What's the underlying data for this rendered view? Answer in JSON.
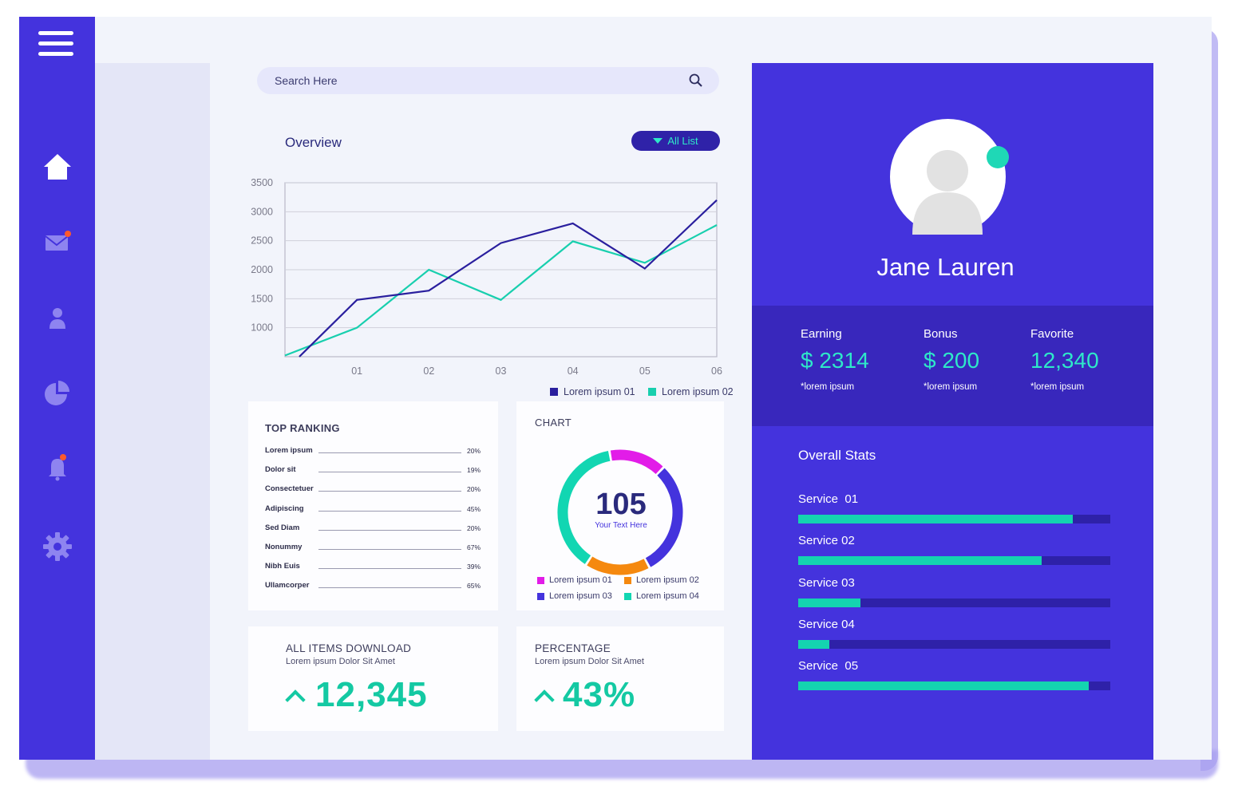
{
  "search": {
    "placeholder": "Search Here"
  },
  "overview": {
    "title": "Overview",
    "filter_label": "All List"
  },
  "chart_data": [
    {
      "type": "line",
      "title": "Overview",
      "x": [
        "01",
        "02",
        "03",
        "04",
        "05",
        "06"
      ],
      "y_ticks": [
        "3500",
        "3000",
        "2500",
        "2000",
        "1500",
        "1000"
      ],
      "ylim": [
        500,
        3500
      ],
      "grid": true,
      "legend_position": "bottom-right",
      "series": [
        {
          "name": "Lorem ipsum 01",
          "color": "#2a1f9e",
          "points": [
            [
              0.2,
              500
            ],
            [
              1,
              1480
            ],
            [
              2,
              1640
            ],
            [
              3,
              2460
            ],
            [
              4,
              2800
            ],
            [
              5,
              2020
            ],
            [
              6,
              3200
            ]
          ]
        },
        {
          "name": "Lorem ipsum 02",
          "color": "#18cfae",
          "points": [
            [
              0,
              520
            ],
            [
              1,
              1000
            ],
            [
              2,
              2000
            ],
            [
              3,
              1480
            ],
            [
              4,
              2490
            ],
            [
              5,
              2120
            ],
            [
              6,
              2770
            ]
          ]
        }
      ]
    },
    {
      "type": "pie",
      "title": "CHART",
      "center_value": "105",
      "center_label": "Your Text Here",
      "series": [
        {
          "name": "Lorem ipsum 01",
          "value": 15,
          "color": "#e21ce8"
        },
        {
          "name": "Lorem ipsum 03",
          "value": 30,
          "color": "#4433dd"
        },
        {
          "name": "Lorem ipsum 02",
          "value": 17,
          "color": "#f5890f"
        },
        {
          "name": "Lorem ipsum 04",
          "value": 38,
          "color": "#12d6b2"
        }
      ]
    }
  ],
  "ranking": {
    "title": "TOP RANKING",
    "rows": [
      {
        "label": "Lorem ipsum",
        "value": "20%"
      },
      {
        "label": "Dolor sit",
        "value": "19%"
      },
      {
        "label": "Consectetuer",
        "value": "20%"
      },
      {
        "label": "Adipiscing",
        "value": "45%"
      },
      {
        "label": "Sed Diam",
        "value": "20%"
      },
      {
        "label": "Nonummy",
        "value": "67%"
      },
      {
        "label": "Nibh Euis",
        "value": "39%"
      },
      {
        "label": "Ullamcorper",
        "value": "65%"
      }
    ]
  },
  "downloads": {
    "title": "ALL ITEMS DOWNLOAD",
    "subtitle": "Lorem ipsum Dolor Sit Amet",
    "value": "12,345"
  },
  "percentage": {
    "title": "PERCENTAGE",
    "subtitle": "Lorem ipsum Dolor Sit Amet",
    "value": "43%"
  },
  "profile": {
    "name": "Jane Lauren",
    "earning": {
      "label": "Earning",
      "value": "$ 2314",
      "sub": "*lorem ipsum"
    },
    "bonus": {
      "label": "Bonus",
      "value": "$ 200",
      "sub": "*lorem ipsum"
    },
    "favorite": {
      "label": "Favorite",
      "value": "12,340",
      "sub": "*lorem ipsum"
    }
  },
  "stats": {
    "title": "Overall Stats",
    "services": [
      {
        "label": "Service  01",
        "level": 0.88
      },
      {
        "label": "Service 02",
        "level": 0.78
      },
      {
        "label": "Service 03",
        "level": 0.2
      },
      {
        "label": "Service 04",
        "level": 0.1
      },
      {
        "label": "Service  05",
        "level": 0.93
      }
    ]
  },
  "icons": [
    "menu-icon",
    "home-icon",
    "mail-icon",
    "user-icon",
    "pie-chart-icon",
    "bell-icon",
    "gear-icon",
    "search-icon",
    "avatar-icon"
  ],
  "colors": {
    "accent": "#4433dd",
    "teal": "#14d3b0",
    "dark": "#2f22a8",
    "notification": "#ff5a2c"
  }
}
